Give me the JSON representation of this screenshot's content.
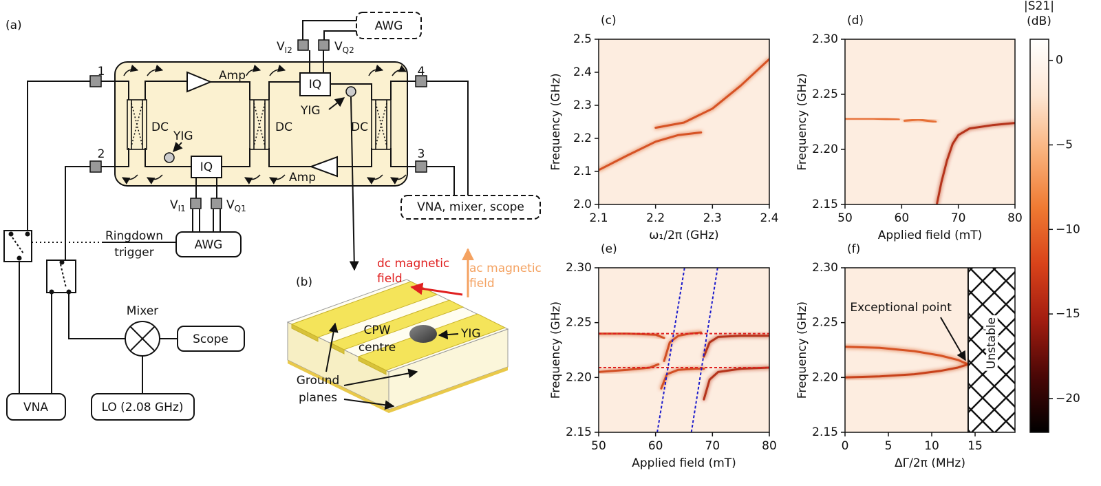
{
  "diagram": {
    "panel_a": "(a)",
    "panel_b": "(b)",
    "ports": [
      "1",
      "2",
      "3",
      "4"
    ],
    "awg_top": "AWG",
    "awg_bottom": "AWG",
    "iq_top": "IQ",
    "iq_bottom": "IQ",
    "v_i2": {
      "main": "V",
      "sub": "I2"
    },
    "v_q2": {
      "main": "V",
      "sub": "Q2"
    },
    "v_i1": {
      "main": "V",
      "sub": "I1"
    },
    "v_q1": {
      "main": "V",
      "sub": "Q1"
    },
    "dc": [
      "DC",
      "DC",
      "DC"
    ],
    "amp": [
      "Amp",
      "Amp"
    ],
    "yig_a": [
      "YIG",
      "YIG"
    ],
    "vna_mixer_scope": "VNA, mixer, scope",
    "ringdown": [
      "Ringdown",
      "trigger"
    ],
    "mixer": "Mixer",
    "scope": "Scope",
    "lo": "LO (2.08 GHz)",
    "vna": "VNA",
    "dc_field": [
      "dc magnetic",
      "field"
    ],
    "ac_field": [
      "ac magnetic",
      "field"
    ],
    "cpw": [
      "CPW",
      "centre"
    ],
    "yig_b": "YIG",
    "ground_planes": [
      "Ground",
      "planes"
    ]
  },
  "chart_data": [
    {
      "type": "heatmap",
      "panel_label": "(c)",
      "xlabel": "ω₁/2π (GHz)",
      "ylabel": "Frequency (GHz)",
      "xlim": [
        2.1,
        2.4
      ],
      "ylim": [
        2.0,
        2.5
      ],
      "xticks": [
        2.1,
        2.2,
        2.3,
        2.4
      ],
      "yticks": [
        {
          "value": 2.0,
          "label": "2.0"
        },
        2.1,
        2.2,
        2.3,
        2.4,
        2.5
      ],
      "background": "#fdede0",
      "series": [
        {
          "color": "#d4481a",
          "x": [
            2.1,
            2.15,
            2.2,
            2.24,
            2.28
          ],
          "values": [
            2.104,
            2.148,
            2.19,
            2.21,
            2.218
          ]
        },
        {
          "color": "#d4481a",
          "x": [
            2.2,
            2.25,
            2.3,
            2.35,
            2.4
          ],
          "values": [
            2.232,
            2.248,
            2.29,
            2.36,
            2.44
          ]
        }
      ]
    },
    {
      "type": "heatmap",
      "panel_label": "(d)",
      "xlabel": "Applied field (mT)",
      "ylabel": "Frequency (GHz)",
      "xlim": [
        50,
        80
      ],
      "ylim": [
        2.15,
        2.3
      ],
      "xticks": [
        50,
        60,
        70,
        80
      ],
      "yticks": [
        2.15,
        {
          "value": 2.2,
          "label": "2.20"
        },
        2.25,
        {
          "value": 2.3,
          "label": "2.30"
        }
      ],
      "background": "#fdede0",
      "series": [
        {
          "color": "#e4682c",
          "x": [
            50,
            55,
            59.5
          ],
          "values": [
            2.228,
            2.228,
            2.227
          ]
        },
        {
          "color": "#e4682c",
          "x": [
            60.5,
            63,
            66
          ],
          "values": [
            2.226,
            2.227,
            2.225
          ]
        },
        {
          "color": "#b0260f",
          "x": [
            66.2,
            67,
            68,
            69,
            70,
            72,
            76,
            80
          ],
          "values": [
            2.15,
            2.17,
            2.19,
            2.205,
            2.213,
            2.219,
            2.222,
            2.224
          ]
        }
      ]
    },
    {
      "type": "heatmap",
      "panel_label": "(e)",
      "xlabel": "Applied field (mT)",
      "ylabel": "Frequency (GHz)",
      "xlim": [
        50,
        80
      ],
      "ylim": [
        2.15,
        2.3
      ],
      "xticks": [
        50,
        60,
        70,
        80
      ],
      "yticks": [
        2.15,
        {
          "value": 2.2,
          "label": "2.20"
        },
        2.25,
        {
          "value": 2.3,
          "label": "2.30"
        }
      ],
      "background": "#fdede0",
      "series": [
        {
          "color": "#cf4418",
          "x": [
            50,
            55,
            60,
            61.5
          ],
          "values": [
            2.24,
            2.24,
            2.239,
            2.236
          ]
        },
        {
          "color": "#cf4418",
          "x": [
            61.5,
            62.5,
            64,
            66,
            68
          ],
          "values": [
            2.215,
            2.232,
            2.238,
            2.24,
            2.241
          ]
        },
        {
          "color": "#b0260f",
          "x": [
            68.5,
            69.5,
            71,
            75,
            80
          ],
          "values": [
            2.219,
            2.232,
            2.237,
            2.238,
            2.238
          ]
        },
        {
          "color": "#cf4418",
          "x": [
            50,
            55,
            59,
            60.5
          ],
          "values": [
            2.205,
            2.207,
            2.209,
            2.212
          ]
        },
        {
          "color": "#cf4418",
          "x": [
            61,
            62,
            64,
            67,
            68.5
          ],
          "values": [
            2.19,
            2.203,
            2.207,
            2.208,
            2.208
          ]
        },
        {
          "color": "#b0260f",
          "x": [
            68.5,
            69.5,
            71,
            75,
            80
          ],
          "values": [
            2.18,
            2.198,
            2.205,
            2.208,
            2.209
          ]
        }
      ],
      "guides": [
        {
          "color": "#e02020",
          "x": [
            50,
            80
          ],
          "values": [
            2.24,
            2.24
          ]
        },
        {
          "color": "#e02020",
          "x": [
            50,
            80
          ],
          "values": [
            2.209,
            2.209
          ]
        },
        {
          "color": "#1a1acc",
          "x": [
            60.3,
            65.1
          ],
          "values": [
            2.15,
            2.3
          ]
        },
        {
          "color": "#1a1acc",
          "x": [
            66.3,
            70.9
          ],
          "values": [
            2.15,
            2.3
          ]
        }
      ]
    },
    {
      "type": "heatmap",
      "panel_label": "(f)",
      "xlabel": "ΔΓ/2π (MHz)",
      "ylabel": "Frequency (GHz)",
      "xlim": [
        0,
        19.6
      ],
      "ylim": [
        2.15,
        2.3
      ],
      "xticks": [
        0,
        5,
        10,
        15
      ],
      "yticks": [
        2.15,
        {
          "value": 2.2,
          "label": "2.20"
        },
        2.25,
        {
          "value": 2.3,
          "label": "2.30"
        }
      ],
      "background": "#fdede0",
      "series": [
        {
          "color": "#d4481a",
          "x": [
            0,
            4,
            8,
            11,
            13,
            14.2
          ],
          "values": [
            2.228,
            2.227,
            2.224,
            2.22,
            2.216,
            2.212
          ]
        },
        {
          "color": "#c43612",
          "x": [
            0,
            4,
            8,
            11,
            13,
            14.2
          ],
          "values": [
            2.2,
            2.201,
            2.203,
            2.206,
            2.209,
            2.212
          ]
        }
      ],
      "hatch_from": 14.2,
      "region_label": "Unstable",
      "annotation": {
        "text": "Exceptional point",
        "x": 14.2,
        "y": 2.212
      }
    }
  ],
  "colorbar": {
    "label": [
      "|S21|",
      "(dB)"
    ],
    "lim": [
      -22,
      1.25
    ],
    "ticks": [
      0,
      {
        "value": -5,
        "label": "−5"
      },
      {
        "value": -10,
        "label": "−10"
      },
      {
        "value": -15,
        "label": "−15"
      },
      {
        "value": -20,
        "label": "−20"
      }
    ],
    "colormap": [
      "#ffffff",
      "#fde6d3",
      "#f9b27c",
      "#ef7a32",
      "#d9431a",
      "#a31d10",
      "#4a0706",
      "#000000"
    ]
  }
}
